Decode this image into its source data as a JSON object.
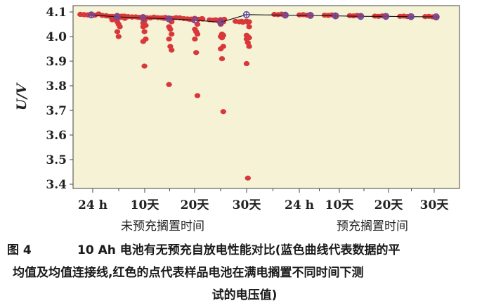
{
  "chart_data": {
    "type": "scatter",
    "ylabel": "U/V",
    "ylim": [
      3.38,
      4.13
    ],
    "y_ticks": [
      "4.1",
      "4.0",
      "3.9",
      "3.8",
      "3.7",
      "3.6",
      "3.5",
      "3.4"
    ],
    "categories": [
      "24 h",
      "10天",
      "20天",
      "30天",
      "24 h",
      "10天",
      "20天",
      "30天"
    ],
    "groups": [
      "未预充搁置时间",
      "预充搁置时间"
    ],
    "background": "#f5f2d6",
    "red_color": "#d8383a",
    "blue_color": "#5a4aa8",
    "mean_values": [
      4.088,
      4.08,
      4.076,
      4.072,
      4.067,
      4.058,
      4.089,
      4.087,
      4.086,
      4.084,
      4.082,
      4.082,
      4.081,
      4.08
    ],
    "red_points": [
      [
        [
          4.09,
          4.089,
          4.088,
          4.091,
          4.087,
          4.092,
          4.086,
          4.09,
          4.089,
          4.088
        ]
      ],
      [
        [
          4.084,
          4.082,
          4.08,
          4.086,
          4.078,
          4.083,
          4.081,
          4.085
        ],
        [
          4.082,
          4.081,
          4.079,
          4.083,
          4.074,
          4.068,
          4.06,
          4.05,
          4.04,
          4.02,
          4.0,
          4.08
        ]
      ],
      [
        [
          4.079,
          4.08,
          4.078,
          4.081,
          4.077,
          4.076,
          4.079,
          4.08
        ],
        [
          4.078,
          4.077,
          4.065,
          4.055,
          4.05,
          4.045,
          4.04,
          4.02,
          3.99,
          3.98,
          3.88,
          4.078
        ]
      ],
      [
        [
          4.077,
          4.076,
          4.078,
          4.075,
          4.074,
          4.077,
          4.076
        ],
        [
          4.075,
          4.073,
          4.06,
          4.04,
          4.03,
          4.01,
          3.99,
          3.96,
          3.945,
          3.805,
          4.074
        ]
      ],
      [
        [
          4.073,
          4.072,
          4.071,
          4.074,
          4.07,
          4.073
        ],
        [
          4.07,
          4.068,
          4.05,
          4.03,
          4.02,
          4.01,
          3.99,
          3.935,
          3.76,
          4.071
        ]
      ],
      [
        [
          4.068,
          4.067,
          4.066,
          4.069,
          4.07
        ],
        [
          4.068,
          4.066,
          4.06,
          4.05,
          4.01,
          4.005,
          4.0,
          3.995,
          3.96,
          3.95,
          3.91,
          3.695,
          4.067
        ]
      ],
      [
        [
          4.062,
          4.06,
          4.058,
          4.063
        ],
        [
          4.062,
          4.058,
          4.04,
          4.005,
          4.0,
          3.995,
          3.99,
          3.975,
          3.96,
          3.89,
          3.425,
          4.06
        ]
      ],
      [
        [
          4.09,
          4.089,
          4.091,
          4.088
        ]
      ],
      [
        [
          4.088,
          4.089,
          4.087,
          4.086
        ]
      ],
      [
        [
          4.087,
          4.086,
          4.088,
          4.085
        ]
      ],
      [
        [
          4.085,
          4.084,
          4.086,
          4.083
        ]
      ],
      [
        [
          4.083,
          4.082,
          4.084,
          4.081
        ]
      ],
      [
        [
          4.082,
          4.083,
          4.081,
          4.08
        ]
      ],
      [
        [
          4.081,
          4.082,
          4.08,
          4.079
        ]
      ]
    ]
  },
  "caption": {
    "fig_number": "图 4",
    "line1": "10 Ah 电池有无预充自放电性能对比(蓝色曲线代表数据的平",
    "line2": "均值及均值连接线,红色的点代表样品电池在满电搁置不同时间下测",
    "line3": "试的电压值)"
  }
}
